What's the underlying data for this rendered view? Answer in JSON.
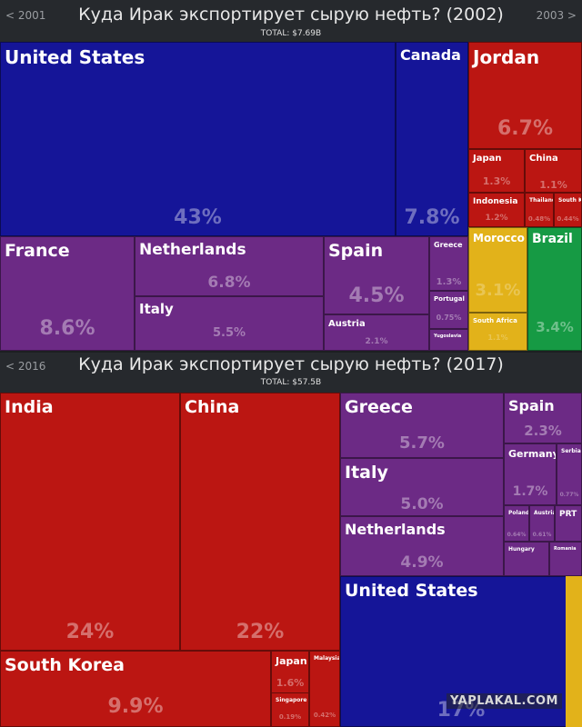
{
  "colors": {
    "asia": "#bb1612",
    "europe": "#6c2a85",
    "north_america": "#151598",
    "africa": "#e2b21a",
    "south_america": "#169a44"
  },
  "watermark": "YAPLAKAL.COM",
  "chart_data": [
    {
      "type": "treemap",
      "title": "Куда Ирак экспортирует сырую нефть? (2002)",
      "total": "TOTAL: $7.69B",
      "prev": "< 2001",
      "next": "2003 >",
      "items": [
        {
          "name": "United States",
          "share": 43,
          "pct": "43%",
          "region": "north_america"
        },
        {
          "name": "Canada",
          "share": 7.8,
          "pct": "7.8%",
          "region": "north_america"
        },
        {
          "name": "Jordan",
          "share": 6.7,
          "pct": "6.7%",
          "region": "asia"
        },
        {
          "name": "Japan",
          "share": 1.3,
          "pct": "1.3%",
          "region": "asia"
        },
        {
          "name": "China",
          "share": 1.1,
          "pct": "1.1%",
          "region": "asia"
        },
        {
          "name": "Indonesia",
          "share": 1.2,
          "pct": "1.2%",
          "region": "asia"
        },
        {
          "name": "Thailand",
          "share": 0.48,
          "pct": "0.48%",
          "region": "asia"
        },
        {
          "name": "South Korea",
          "share": 0.44,
          "pct": "0.44%",
          "region": "asia"
        },
        {
          "name": "France",
          "share": 8.6,
          "pct": "8.6%",
          "region": "europe"
        },
        {
          "name": "Netherlands",
          "share": 6.8,
          "pct": "6.8%",
          "region": "europe"
        },
        {
          "name": "Italy",
          "share": 5.5,
          "pct": "5.5%",
          "region": "europe"
        },
        {
          "name": "Spain",
          "share": 4.5,
          "pct": "4.5%",
          "region": "europe"
        },
        {
          "name": "Austria",
          "share": 2.1,
          "pct": "2.1%",
          "region": "europe"
        },
        {
          "name": "Greece",
          "share": 1.3,
          "pct": "1.3%",
          "region": "europe"
        },
        {
          "name": "Portugal",
          "share": 0.75,
          "pct": "0.75%",
          "region": "europe"
        },
        {
          "name": "Yugoslavia",
          "share": 0.3,
          "pct": "",
          "region": "europe"
        },
        {
          "name": "Morocco",
          "share": 3.1,
          "pct": "3.1%",
          "region": "africa"
        },
        {
          "name": "South Africa",
          "share": 1.1,
          "pct": "1.1%",
          "region": "africa"
        },
        {
          "name": "Brazil",
          "share": 3.4,
          "pct": "3.4%",
          "region": "south_america"
        }
      ]
    },
    {
      "type": "treemap",
      "title": "Куда Ирак экспортирует сырую нефть? (2017)",
      "total": "TOTAL: $57.5B",
      "prev": "< 2016",
      "next": "",
      "items": [
        {
          "name": "India",
          "share": 24,
          "pct": "24%",
          "region": "asia"
        },
        {
          "name": "China",
          "share": 22,
          "pct": "22%",
          "region": "asia"
        },
        {
          "name": "South Korea",
          "share": 9.9,
          "pct": "9.9%",
          "region": "asia"
        },
        {
          "name": "Japan",
          "share": 1.6,
          "pct": "1.6%",
          "region": "asia"
        },
        {
          "name": "Singapore",
          "share": 0.19,
          "pct": "0.19%",
          "region": "asia"
        },
        {
          "name": "Malaysia",
          "share": 0.42,
          "pct": "0.42%",
          "region": "asia"
        },
        {
          "name": "Greece",
          "share": 5.7,
          "pct": "5.7%",
          "region": "europe"
        },
        {
          "name": "Italy",
          "share": 5.0,
          "pct": "5.0%",
          "region": "europe"
        },
        {
          "name": "Netherlands",
          "share": 4.9,
          "pct": "4.9%",
          "region": "europe"
        },
        {
          "name": "Spain",
          "share": 2.3,
          "pct": "2.3%",
          "region": "europe"
        },
        {
          "name": "Germany",
          "share": 1.7,
          "pct": "1.7%",
          "region": "europe"
        },
        {
          "name": "Serbia",
          "share": 0.77,
          "pct": "0.77%",
          "region": "europe"
        },
        {
          "name": "Poland",
          "share": 0.64,
          "pct": "0.64%",
          "region": "europe"
        },
        {
          "name": "Austria",
          "share": 0.61,
          "pct": "0.61%",
          "region": "europe"
        },
        {
          "name": "PRT",
          "share": 0.5,
          "pct": "",
          "region": "europe"
        },
        {
          "name": "Hungary",
          "share": 0.3,
          "pct": "",
          "region": "europe"
        },
        {
          "name": "Romania",
          "share": 0.2,
          "pct": "",
          "region": "europe"
        },
        {
          "name": "United States",
          "share": 17,
          "pct": "17%",
          "region": "north_america"
        }
      ]
    }
  ]
}
